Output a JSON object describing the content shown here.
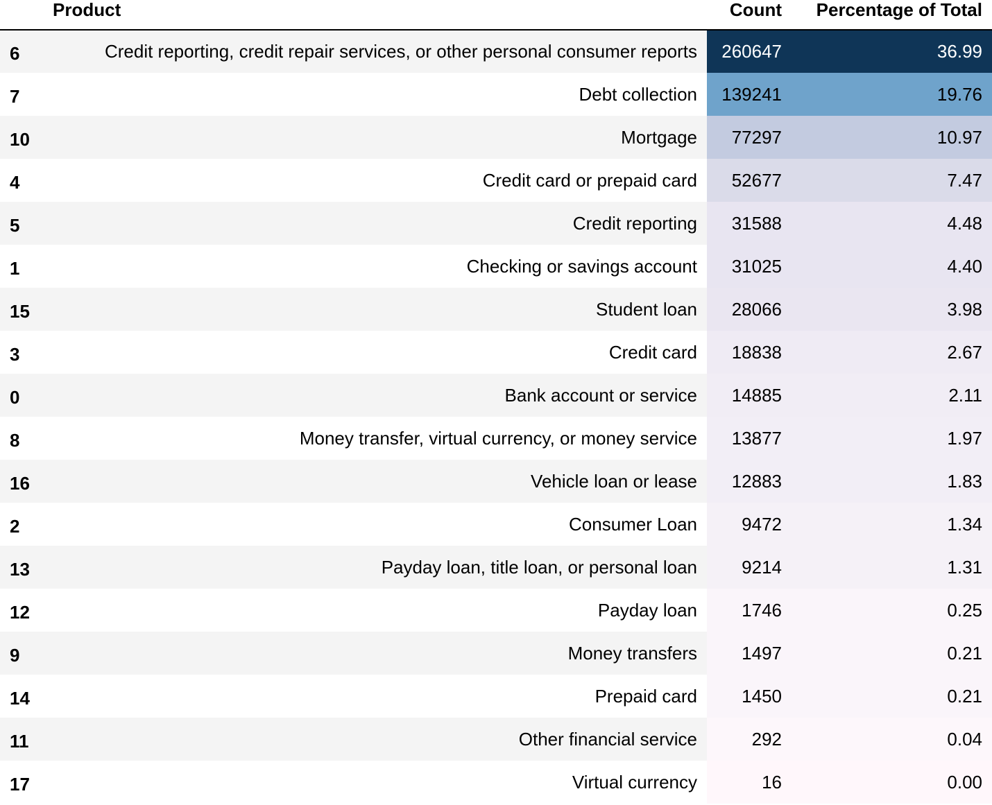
{
  "table": {
    "columns": {
      "index": "",
      "product": "Product",
      "count": "Count",
      "pct": "Percentage of Total"
    },
    "rows": [
      {
        "index": "6",
        "product": "Credit reporting, credit repair services, or other personal consumer reports",
        "count": "260647",
        "pct": "36.99",
        "bg": "#0f3557",
        "fg": "#ffffff"
      },
      {
        "index": "7",
        "product": "Debt collection",
        "count": "139241",
        "pct": "19.76",
        "bg": "#6fa3cb",
        "fg": "#000000"
      },
      {
        "index": "10",
        "product": "Mortgage",
        "count": "77297",
        "pct": "10.97",
        "bg": "#c3cbe0",
        "fg": "#000000"
      },
      {
        "index": "4",
        "product": "Credit card or prepaid card",
        "count": "52677",
        "pct": "7.47",
        "bg": "#dadbe9",
        "fg": "#000000"
      },
      {
        "index": "5",
        "product": "Credit reporting",
        "count": "31588",
        "pct": "4.48",
        "bg": "#e8e5f1",
        "fg": "#000000"
      },
      {
        "index": "1",
        "product": "Checking or savings account",
        "count": "31025",
        "pct": "4.40",
        "bg": "#e8e5f1",
        "fg": "#000000"
      },
      {
        "index": "15",
        "product": "Student loan",
        "count": "28066",
        "pct": "3.98",
        "bg": "#eae6f1",
        "fg": "#000000"
      },
      {
        "index": "3",
        "product": "Credit card",
        "count": "18838",
        "pct": "2.67",
        "bg": "#efebf4",
        "fg": "#000000"
      },
      {
        "index": "0",
        "product": "Bank account or service",
        "count": "14885",
        "pct": "2.11",
        "bg": "#f1edf5",
        "fg": "#000000"
      },
      {
        "index": "8",
        "product": "Money transfer, virtual currency, or money service",
        "count": "13877",
        "pct": "1.97",
        "bg": "#f2eef6",
        "fg": "#000000"
      },
      {
        "index": "16",
        "product": "Vehicle loan or lease",
        "count": "12883",
        "pct": "1.83",
        "bg": "#f2eef6",
        "fg": "#000000"
      },
      {
        "index": "2",
        "product": "Consumer Loan",
        "count": "9472",
        "pct": "1.34",
        "bg": "#f5f1f7",
        "fg": "#000000"
      },
      {
        "index": "13",
        "product": "Payday loan, title loan, or personal loan",
        "count": "9214",
        "pct": "1.31",
        "bg": "#f5f1f7",
        "fg": "#000000"
      },
      {
        "index": "12",
        "product": "Payday loan",
        "count": "1746",
        "pct": "0.25",
        "bg": "#faf5fa",
        "fg": "#000000"
      },
      {
        "index": "9",
        "product": "Money transfers",
        "count": "1497",
        "pct": "0.21",
        "bg": "#faf5fa",
        "fg": "#000000"
      },
      {
        "index": "14",
        "product": "Prepaid card",
        "count": "1450",
        "pct": "0.21",
        "bg": "#faf5fa",
        "fg": "#000000"
      },
      {
        "index": "11",
        "product": "Other financial service",
        "count": "292",
        "pct": "0.04",
        "bg": "#fdf7fb",
        "fg": "#000000"
      },
      {
        "index": "17",
        "product": "Virtual currency",
        "count": "16",
        "pct": "0.00",
        "bg": "#fff7fb",
        "fg": "#000000"
      }
    ]
  }
}
